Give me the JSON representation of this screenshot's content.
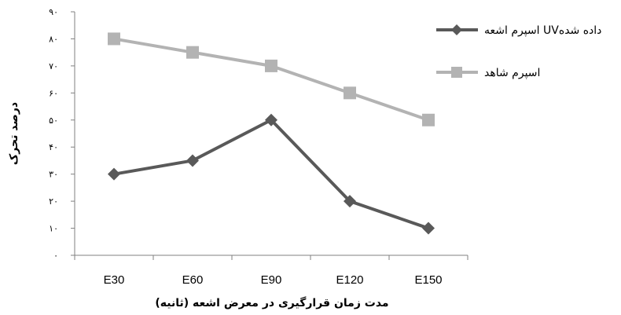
{
  "chart_data": {
    "type": "line",
    "categories": [
      "E30",
      "E60",
      "E90",
      "E120",
      "E150"
    ],
    "y_tick_labels": [
      "۰",
      "۱۰",
      "۲۰",
      "۳۰",
      "۴۰",
      "۵۰",
      "۶۰",
      "۷۰",
      "۸۰",
      "۹۰"
    ],
    "ylim": [
      0,
      90
    ],
    "xlabel": "مدت زمان قرارگیری در معرض اشعه (ثانیه)",
    "ylabel": "درصد تحرک",
    "grid": false,
    "legend_position": "top-right",
    "series": [
      {
        "name": "اسپرم اشعه UVداده شده",
        "values": [
          30,
          35,
          50,
          20,
          10
        ],
        "color": "#595959",
        "marker": "diamond"
      },
      {
        "name": "اسپرم شاهد",
        "values": [
          80,
          75,
          70,
          60,
          50
        ],
        "color": "#b3b3b3",
        "marker": "square"
      }
    ]
  }
}
